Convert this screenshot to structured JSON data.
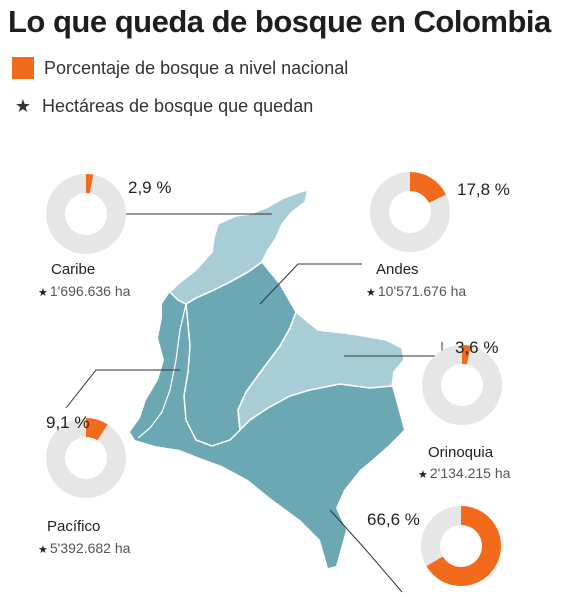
{
  "title": "Lo que queda de bosque en Colombia",
  "legend": {
    "percent_label": "Porcentaje de bosque a nivel nacional",
    "hectares_label": "Hectáreas de bosque que quedan",
    "percent_color": "#f26a1b",
    "star_icon": "star-icon"
  },
  "colors": {
    "donut_fill": "#f26a1b",
    "donut_track": "#e6e6e6",
    "map_dark": "#6ca8b3",
    "map_light": "#a9cdd6",
    "map_border": "#ffffff",
    "leader": "#333333"
  },
  "chart_data": {
    "type": "pie",
    "title": "Lo que queda de bosque en Colombia",
    "series": [
      {
        "name": "Caribe",
        "percent": 2.9,
        "percent_label": "2,9 %",
        "hectares": "1'696.636 ha"
      },
      {
        "name": "Andes",
        "percent": 17.8,
        "percent_label": "17,8 %",
        "hectares": "10'571.676 ha"
      },
      {
        "name": "Orinoquia",
        "percent": 3.6,
        "percent_label": "3,6 %",
        "hectares": "2'134.215 ha"
      },
      {
        "name": "Pacífico",
        "percent": 9.1,
        "percent_label": "9,1 %",
        "hectares": "5'392.682 ha"
      },
      {
        "name": "",
        "percent": 66.6,
        "percent_label": "66,6 %",
        "hectares": ""
      }
    ]
  }
}
